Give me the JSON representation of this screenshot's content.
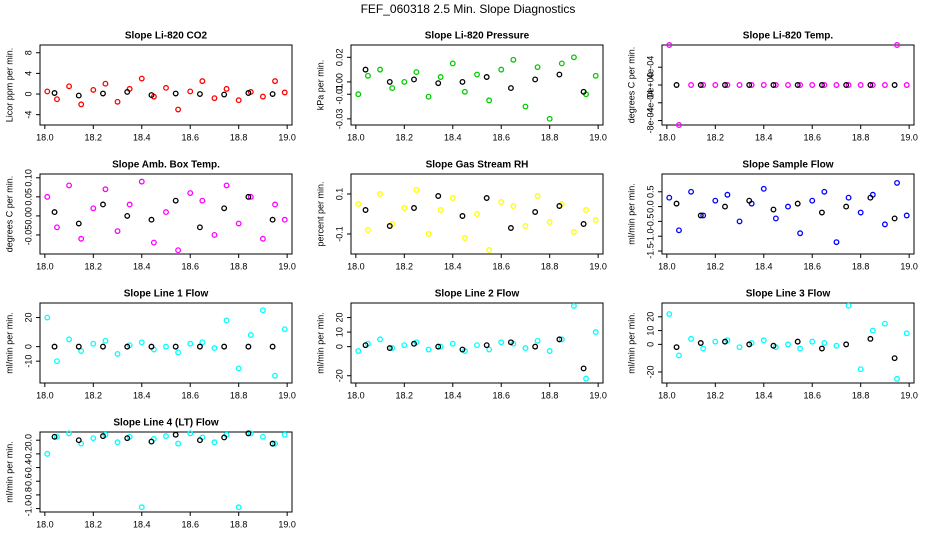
{
  "title": "FEF_060318  2.5 Min. Slope Diagnostics",
  "chart_data": [
    {
      "type": "scatter",
      "title": "Slope Li-820 CO2",
      "ylabel": "Licor ppm per min.",
      "xlim": [
        17.98,
        19.02
      ],
      "xticks": [
        {
          "value": 18,
          "label": "18.0"
        },
        18.2,
        18.4,
        18.6,
        18.8,
        {
          "value": 19,
          "label": "19.0"
        }
      ],
      "ylim": [
        -6,
        9.5
      ],
      "yticks": [
        -4,
        0,
        4,
        8
      ],
      "series": [
        {
          "color": "#ff0000",
          "x": [
            18.01,
            18.05,
            18.1,
            18.15,
            18.2,
            18.25,
            18.3,
            18.35,
            18.4,
            18.45,
            18.5,
            18.55,
            18.6,
            18.65,
            18.7,
            18.75,
            18.8,
            18.85,
            18.9,
            18.95,
            18.99
          ],
          "values": [
            0.5,
            -1,
            1.5,
            -2,
            0.8,
            2,
            -1.5,
            1,
            3,
            -0.5,
            1.2,
            -3,
            0.5,
            2.5,
            -0.8,
            1,
            -1.2,
            0.4,
            -0.5,
            2.5,
            0.3
          ]
        },
        {
          "color": "#000000",
          "x": [
            18.04,
            18.14,
            18.24,
            18.34,
            18.44,
            18.54,
            18.64,
            18.74,
            18.84,
            18.94
          ],
          "values": [
            0.2,
            -0.3,
            0.1,
            0.4,
            -0.2,
            0.1,
            0,
            -0.1,
            0.2,
            0
          ]
        }
      ]
    },
    {
      "type": "scatter",
      "title": "Slope Li-820 Pressure",
      "ylabel": "kPa per min.",
      "xlim": [
        17.98,
        19.02
      ],
      "xticks": [
        {
          "value": 18,
          "label": "18.0"
        },
        18.2,
        18.4,
        18.6,
        18.8,
        {
          "value": 19,
          "label": "19.0"
        }
      ],
      "ylim": [
        -0.035,
        0.03
      ],
      "yticks": [
        {
          "value": -0.03,
          "label": "-0.03"
        },
        {
          "value": -0.01,
          "label": "-0.01"
        },
        {
          "value": 0,
          "label": "0.00"
        },
        {
          "value": 0.02,
          "label": "0.02"
        }
      ],
      "series": [
        {
          "color": "#00cc00",
          "x": [
            18.01,
            18.05,
            18.1,
            18.15,
            18.2,
            18.25,
            18.3,
            18.35,
            18.4,
            18.45,
            18.5,
            18.55,
            18.6,
            18.65,
            18.7,
            18.75,
            18.8,
            18.85,
            18.9,
            18.95,
            18.99
          ],
          "values": [
            -0.01,
            0.005,
            0.01,
            -0.005,
            0,
            0.008,
            -0.012,
            0.004,
            0.015,
            -0.008,
            0.006,
            -0.015,
            0.01,
            0.018,
            -0.02,
            0.012,
            -0.03,
            0.015,
            0.02,
            -0.01,
            0.005
          ]
        },
        {
          "color": "#000000",
          "x": [
            18.04,
            18.14,
            18.24,
            18.34,
            18.44,
            18.54,
            18.64,
            18.74,
            18.84,
            18.94
          ],
          "values": [
            0.01,
            0,
            0.002,
            -0.001,
            0,
            0.004,
            -0.005,
            0.002,
            0.006,
            -0.008
          ]
        }
      ]
    },
    {
      "type": "scatter",
      "title": "Slope Li-820 Temp.",
      "ylabel": "degrees C per min.",
      "xlim": [
        17.98,
        19.02
      ],
      "xticks": [
        {
          "value": 18,
          "label": "18.0"
        },
        18.2,
        18.4,
        18.6,
        18.8,
        {
          "value": 19,
          "label": "19.0"
        }
      ],
      "ylim": [
        -0.0009,
        0.0009
      ],
      "yticks": [
        {
          "value": -0.0008,
          "label": "-8e-04"
        },
        {
          "value": -0.0004,
          "label": "-4e-04"
        },
        {
          "value": 0,
          "label": "0e+00"
        },
        {
          "value": 0.0004,
          "label": "4e-04"
        }
      ],
      "series": [
        {
          "color": "#ff00ff",
          "x": [
            18.01,
            18.05,
            18.1,
            18.15,
            18.2,
            18.25,
            18.3,
            18.35,
            18.4,
            18.45,
            18.5,
            18.55,
            18.6,
            18.65,
            18.7,
            18.75,
            18.8,
            18.85,
            18.9,
            18.95,
            18.99
          ],
          "values": [
            0.0009,
            -0.0009,
            0,
            0,
            0,
            0,
            0,
            0,
            0,
            0,
            0,
            0,
            0,
            0,
            0,
            0,
            0,
            0,
            0,
            0.0009,
            0
          ]
        },
        {
          "color": "#000000",
          "x": [
            18.04,
            18.14,
            18.24,
            18.34,
            18.44,
            18.54,
            18.64,
            18.74,
            18.84,
            18.94
          ],
          "values": [
            0,
            0,
            0,
            0,
            0,
            0,
            0,
            0,
            0,
            0
          ]
        }
      ]
    },
    {
      "type": "scatter",
      "title": "Slope Amb. Box Temp.",
      "ylabel": "degrees C per min.",
      "xlim": [
        17.98,
        19.02
      ],
      "xticks": [
        {
          "value": 18,
          "label": "18.0"
        },
        18.2,
        18.4,
        18.6,
        18.8,
        {
          "value": 19,
          "label": "19.0"
        }
      ],
      "ylim": [
        -0.1,
        0.11
      ],
      "yticks": [
        -0.05,
        {
          "value": 0,
          "label": "0.00"
        },
        0.05,
        {
          "value": 0.1,
          "label": "0.10"
        }
      ],
      "series": [
        {
          "color": "#ff00ff",
          "x": [
            18.01,
            18.05,
            18.1,
            18.15,
            18.2,
            18.25,
            18.3,
            18.35,
            18.4,
            18.45,
            18.5,
            18.55,
            18.6,
            18.65,
            18.7,
            18.75,
            18.8,
            18.85,
            18.9,
            18.95,
            18.99
          ],
          "values": [
            0.05,
            -0.03,
            0.08,
            -0.06,
            0.02,
            0.07,
            -0.04,
            0.03,
            0.09,
            -0.07,
            0.01,
            -0.09,
            0.06,
            0.04,
            -0.05,
            0.08,
            -0.02,
            0.05,
            -0.06,
            0.03,
            -0.01
          ]
        },
        {
          "color": "#000000",
          "x": [
            18.04,
            18.14,
            18.24,
            18.34,
            18.44,
            18.54,
            18.64,
            18.74,
            18.84,
            18.94
          ],
          "values": [
            0.01,
            -0.02,
            0.03,
            0,
            -0.01,
            0.04,
            -0.03,
            0.02,
            0.05,
            -0.01
          ]
        }
      ]
    },
    {
      "type": "scatter",
      "title": "Slope Gas Stream RH",
      "ylabel": "percent per min.",
      "xlim": [
        17.98,
        19.02
      ],
      "xticks": [
        {
          "value": 18,
          "label": "18.0"
        },
        18.2,
        18.4,
        18.6,
        18.8,
        {
          "value": 19,
          "label": "19.0"
        }
      ],
      "ylim": [
        -0.2,
        0.2
      ],
      "yticks": [
        -0.1,
        0.1
      ],
      "series": [
        {
          "color": "#ffff00",
          "x": [
            18.01,
            18.05,
            18.1,
            18.15,
            18.2,
            18.25,
            18.3,
            18.35,
            18.4,
            18.45,
            18.5,
            18.55,
            18.6,
            18.65,
            18.7,
            18.75,
            18.8,
            18.85,
            18.9,
            18.95,
            18.99
          ],
          "values": [
            0.05,
            -0.08,
            0.1,
            -0.05,
            0.03,
            0.12,
            -0.1,
            0.02,
            0.08,
            -0.12,
            0,
            -0.18,
            0.06,
            0.04,
            -0.06,
            0.09,
            -0.04,
            0.05,
            -0.09,
            0.02,
            -0.03
          ]
        },
        {
          "color": "#000000",
          "x": [
            18.04,
            18.14,
            18.24,
            18.34,
            18.44,
            18.54,
            18.64,
            18.74,
            18.84,
            18.94
          ],
          "values": [
            0.02,
            -0.06,
            0.03,
            0.09,
            -0.01,
            0.08,
            -0.07,
            0.01,
            0.04,
            -0.05
          ]
        }
      ]
    },
    {
      "type": "scatter",
      "title": "Slope Sample Flow",
      "ylabel": "ml/min per min.",
      "xlim": [
        17.98,
        19.02
      ],
      "xticks": [
        {
          "value": 18,
          "label": "18.0"
        },
        18.2,
        18.4,
        18.6,
        18.8,
        {
          "value": 19,
          "label": "19.0"
        }
      ],
      "ylim": [
        -1.6,
        1.1
      ],
      "yticks": [
        -1.5,
        {
          "value": -1,
          "label": "-1.0"
        },
        -0.5,
        {
          "value": 0,
          "label": "0.0"
        },
        0.5
      ],
      "series": [
        {
          "color": "#0000ff",
          "x": [
            18.01,
            18.05,
            18.1,
            18.15,
            18.2,
            18.25,
            18.3,
            18.35,
            18.4,
            18.45,
            18.5,
            18.55,
            18.6,
            18.65,
            18.7,
            18.75,
            18.8,
            18.85,
            18.9,
            18.95,
            18.99
          ],
          "values": [
            0.3,
            -0.8,
            0.5,
            -0.3,
            0.2,
            0.4,
            -0.5,
            0.1,
            0.6,
            -0.4,
            0,
            -0.9,
            0.2,
            0.5,
            -1.2,
            0.3,
            -0.2,
            0.4,
            -0.6,
            0.8,
            -0.3
          ]
        },
        {
          "color": "#000000",
          "x": [
            18.04,
            18.14,
            18.24,
            18.34,
            18.44,
            18.54,
            18.64,
            18.74,
            18.84,
            18.94
          ],
          "values": [
            0.1,
            -0.3,
            0,
            0.2,
            -0.1,
            0.1,
            -0.2,
            0,
            0.3,
            -0.4
          ]
        }
      ]
    },
    {
      "type": "scatter",
      "title": "Slope Line 1 Flow",
      "ylabel": "ml/min per min.",
      "xlim": [
        17.98,
        19.02
      ],
      "xticks": [
        {
          "value": 18,
          "label": "18.0"
        },
        18.2,
        18.4,
        18.6,
        18.8,
        {
          "value": 19,
          "label": "19.0"
        }
      ],
      "ylim": [
        -25,
        30
      ],
      "yticks": [
        -10,
        0,
        20
      ],
      "series": [
        {
          "color": "#00ffff",
          "x": [
            18.01,
            18.05,
            18.1,
            18.15,
            18.2,
            18.25,
            18.3,
            18.35,
            18.4,
            18.45,
            18.5,
            18.55,
            18.6,
            18.65,
            18.7,
            18.75,
            18.8,
            18.85,
            18.9,
            18.95,
            18.99
          ],
          "values": [
            20,
            -10,
            5,
            -3,
            2,
            4,
            -5,
            1,
            3,
            -2,
            0,
            -4,
            2,
            3,
            -1,
            18,
            -15,
            8,
            25,
            -20,
            12
          ]
        },
        {
          "color": "#000000",
          "x": [
            18.04,
            18.14,
            18.24,
            18.34,
            18.44,
            18.54,
            18.64,
            18.74,
            18.84,
            18.94
          ],
          "values": [
            0,
            0,
            0,
            0,
            0,
            0,
            0,
            0,
            0,
            0
          ]
        }
      ]
    },
    {
      "type": "scatter",
      "title": "Slope Line 2 Flow",
      "ylabel": "ml/min per min.",
      "xlim": [
        17.98,
        19.02
      ],
      "xticks": [
        {
          "value": 18,
          "label": "18.0"
        },
        18.2,
        18.4,
        18.6,
        18.8,
        {
          "value": 19,
          "label": "19.0"
        }
      ],
      "ylim": [
        -25,
        30
      ],
      "yticks": [
        -20,
        0,
        10,
        20
      ],
      "series": [
        {
          "color": "#00ffff",
          "x": [
            18.01,
            18.05,
            18.1,
            18.15,
            18.2,
            18.25,
            18.3,
            18.35,
            18.4,
            18.45,
            18.5,
            18.55,
            18.6,
            18.65,
            18.7,
            18.75,
            18.8,
            18.85,
            18.9,
            18.95,
            18.99
          ],
          "values": [
            -3,
            2,
            5,
            -1,
            1,
            3,
            -2,
            0,
            2,
            -3,
            1,
            -2,
            3,
            2,
            -1,
            4,
            -3,
            5,
            28,
            -22,
            10
          ]
        },
        {
          "color": "#000000",
          "x": [
            18.04,
            18.14,
            18.24,
            18.34,
            18.44,
            18.54,
            18.64,
            18.74,
            18.84,
            18.94
          ],
          "values": [
            1,
            -1,
            2,
            0,
            -2,
            1,
            3,
            0,
            5,
            -15
          ]
        }
      ]
    },
    {
      "type": "scatter",
      "title": "Slope Line 3 Flow",
      "ylabel": "ml/min per min.",
      "xlim": [
        17.98,
        19.02
      ],
      "xticks": [
        {
          "value": 18,
          "label": "18.0"
        },
        18.2,
        18.4,
        18.6,
        18.8,
        {
          "value": 19,
          "label": "19.0"
        }
      ],
      "ylim": [
        -28,
        30
      ],
      "yticks": [
        -20,
        0,
        10,
        20
      ],
      "series": [
        {
          "color": "#00ffff",
          "x": [
            18.01,
            18.05,
            18.1,
            18.15,
            18.2,
            18.25,
            18.3,
            18.35,
            18.4,
            18.45,
            18.5,
            18.55,
            18.6,
            18.65,
            18.7,
            18.75,
            18.8,
            18.85,
            18.9,
            18.95,
            18.99
          ],
          "values": [
            22,
            -8,
            4,
            -3,
            2,
            3,
            -2,
            1,
            3,
            -2,
            0,
            -3,
            2,
            1,
            -1,
            28,
            -18,
            10,
            15,
            -25,
            8
          ]
        },
        {
          "color": "#000000",
          "x": [
            18.04,
            18.14,
            18.24,
            18.34,
            18.44,
            18.54,
            18.64,
            18.74,
            18.84,
            18.94
          ],
          "values": [
            -2,
            1,
            2,
            0,
            -1,
            2,
            -3,
            0,
            4,
            -10
          ]
        }
      ]
    },
    {
      "type": "scatter",
      "title": "Slope Line 4 (LT) Flow",
      "ylabel": "ml/min per min.",
      "xlim": [
        17.98,
        19.02
      ],
      "xticks": [
        {
          "value": 18,
          "label": "18.0"
        },
        18.2,
        18.4,
        18.6,
        18.8,
        {
          "value": 19,
          "label": "19.0"
        }
      ],
      "ylim": [
        -1.05,
        0.12
      ],
      "yticks": [
        {
          "value": -1,
          "label": "-1.0"
        },
        -0.8,
        -0.6,
        -0.4,
        -0.2,
        {
          "value": 0,
          "label": "0.0"
        }
      ],
      "series": [
        {
          "color": "#00ffff",
          "x": [
            18.01,
            18.05,
            18.1,
            18.15,
            18.2,
            18.25,
            18.3,
            18.35,
            18.4,
            18.45,
            18.5,
            18.55,
            18.6,
            18.65,
            18.7,
            18.75,
            18.8,
            18.85,
            18.9,
            18.95,
            18.99
          ],
          "values": [
            -0.2,
            0.05,
            0.1,
            -0.05,
            0.03,
            0.08,
            -0.03,
            0.05,
            -0.98,
            0.02,
            0.06,
            -0.05,
            0.1,
            0.04,
            -0.03,
            0.08,
            -0.98,
            0.1,
            0.05,
            -0.05,
            0.08
          ]
        },
        {
          "color": "#000000",
          "x": [
            18.04,
            18.14,
            18.24,
            18.34,
            18.44,
            18.54,
            18.64,
            18.74,
            18.84,
            18.94
          ],
          "values": [
            0.05,
            0,
            0.06,
            0.03,
            -0.02,
            0.08,
            0,
            0.04,
            0.1,
            -0.05
          ]
        }
      ]
    }
  ]
}
